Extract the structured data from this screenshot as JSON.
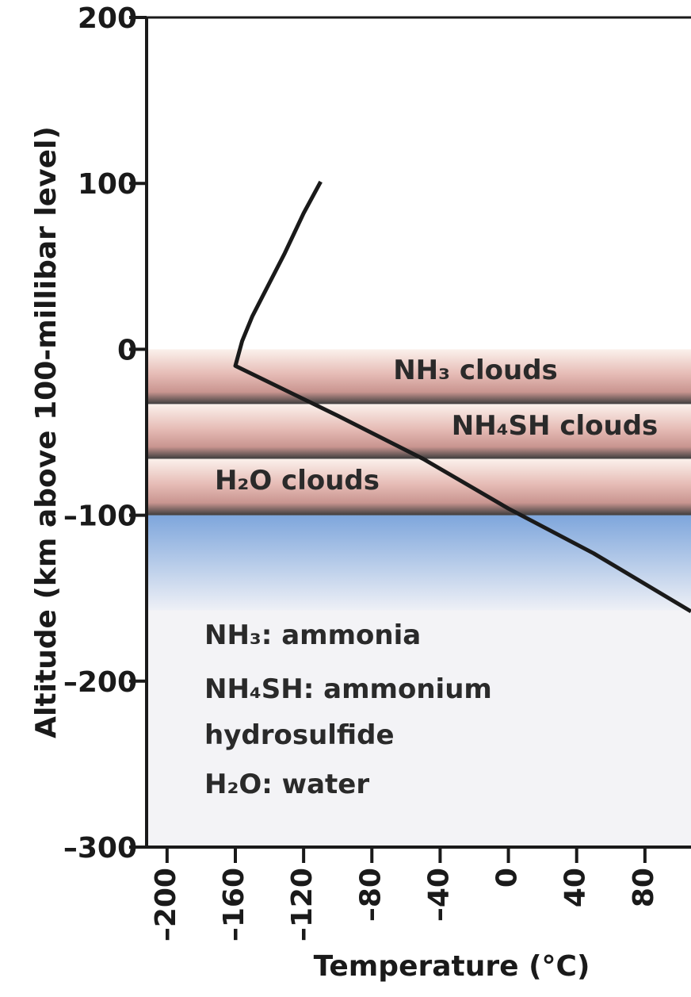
{
  "chart_data": {
    "type": "line",
    "ylabel": "Altitude (km above 100-millibar level)",
    "xlabel": "Temperature (°C)",
    "xlim": [
      -212,
      107
    ],
    "ylim": [
      -300,
      200
    ],
    "xticks": [
      {
        "value": -200,
        "label": "–200"
      },
      {
        "value": -160,
        "label": "–160"
      },
      {
        "value": -120,
        "label": "–120"
      },
      {
        "value": -80,
        "label": "–80"
      },
      {
        "value": -40,
        "label": "–40"
      },
      0,
      40,
      80
    ],
    "yticks": [
      {
        "value": -300,
        "label": "–300"
      },
      {
        "value": -200,
        "label": "–200"
      },
      {
        "value": -100,
        "label": "–100"
      },
      0,
      100,
      200
    ],
    "x": [
      -110,
      -120,
      -131,
      -141,
      -150,
      -156,
      -160,
      -100,
      -50,
      0,
      50,
      107
    ],
    "series": [
      {
        "color": "#1a1a1a",
        "values": [
          101,
          82,
          58,
          38,
          20,
          5,
          -10,
          -40,
          -66,
          -96,
          -123,
          -158
        ]
      }
    ],
    "cloud_layers": [
      {
        "label": "NH₃ clouds",
        "top": 0,
        "bottom": -33
      },
      {
        "label": "NH₄SH clouds",
        "top": -33,
        "bottom": -66
      },
      {
        "label": "H₂O clouds",
        "top": -66,
        "bottom": -100
      }
    ],
    "notes": [
      "NH₃: ammonia",
      "NH₄SH: ammonium",
      "hydrosulfide",
      "H₂O: water"
    ]
  }
}
